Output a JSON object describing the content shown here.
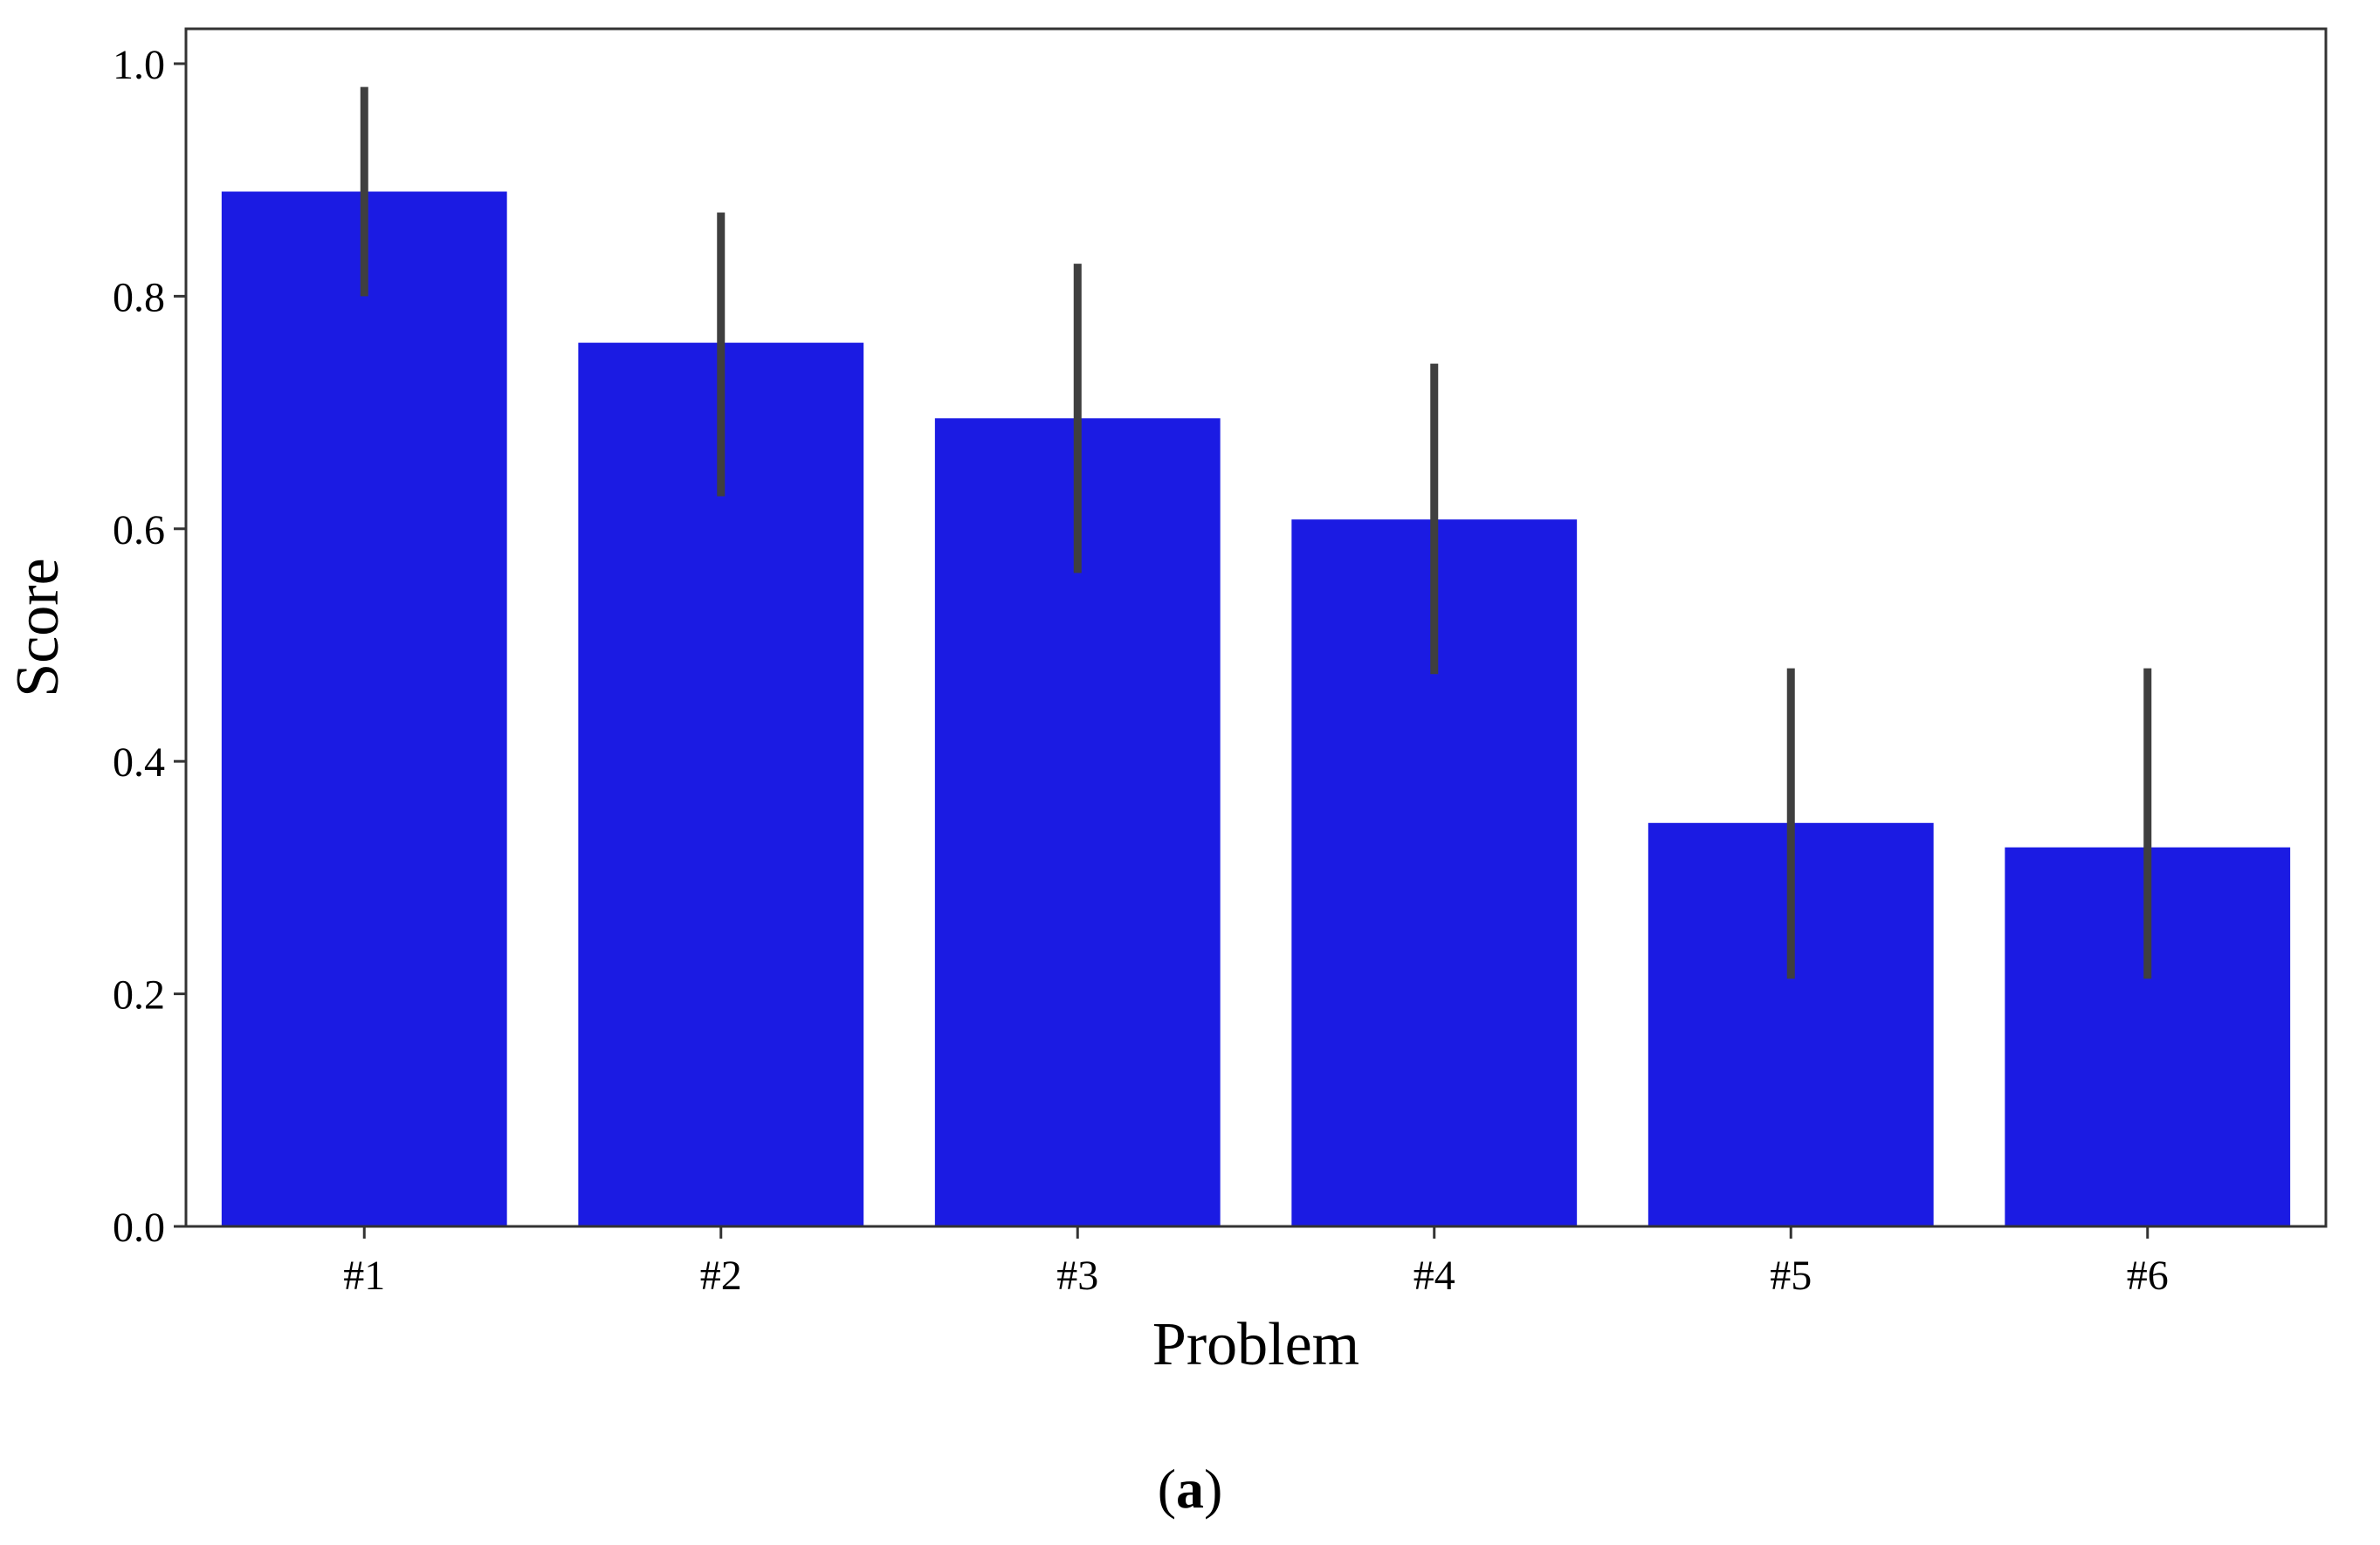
{
  "chart_data": {
    "type": "bar",
    "categories": [
      "#1",
      "#2",
      "#3",
      "#4",
      "#5",
      "#6"
    ],
    "values": [
      0.89,
      0.76,
      0.695,
      0.608,
      0.347,
      0.326
    ],
    "error_low": [
      0.8,
      0.628,
      0.562,
      0.475,
      0.213,
      0.213
    ],
    "error_high": [
      0.98,
      0.872,
      0.828,
      0.742,
      0.48,
      0.48
    ],
    "xlabel": "Problem",
    "ylabel": "Score",
    "ylim": [
      0,
      1.03
    ],
    "yticks": [
      "0.0",
      "0.2",
      "0.4",
      "0.6",
      "0.8",
      "1.0"
    ],
    "ytick_values": [
      0,
      0.2,
      0.4,
      0.6,
      0.8,
      1.0
    ],
    "grid": false,
    "colors": {
      "bar": "#1b1be3",
      "error_bar": "#3f3f3f",
      "axes": "#333333"
    }
  },
  "caption": {
    "prefix": "(",
    "letter": "a",
    "suffix": ")"
  }
}
